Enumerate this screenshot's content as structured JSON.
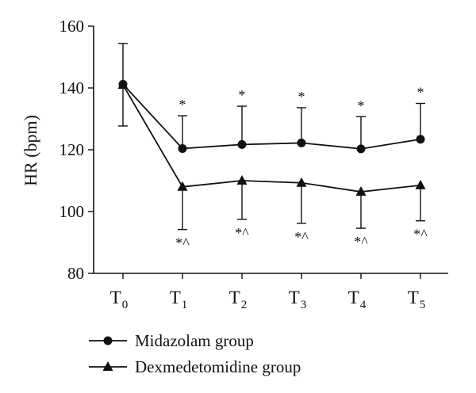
{
  "chart_data": {
    "type": "line",
    "ylabel": "HR (bpm)",
    "xlabel": "",
    "ylim": [
      80,
      160
    ],
    "yticks": [
      80,
      100,
      120,
      140,
      160
    ],
    "categories": [
      {
        "main": "T",
        "sub": "0"
      },
      {
        "main": "T",
        "sub": "1"
      },
      {
        "main": "T",
        "sub": "2"
      },
      {
        "main": "T",
        "sub": "3"
      },
      {
        "main": "T",
        "sub": "4"
      },
      {
        "main": "T",
        "sub": "5"
      }
    ],
    "series": [
      {
        "name": "Midazolam group",
        "marker": "circle",
        "error_direction": "up",
        "values": [
          141.2,
          120.4,
          121.7,
          122.2,
          120.3,
          123.4
        ],
        "errors": [
          13.2,
          10.6,
          12.4,
          11.4,
          10.4,
          11.6
        ],
        "annotations": [
          "",
          "*",
          "*",
          "*",
          "*",
          "*"
        ]
      },
      {
        "name": "Dexmedetomidine group",
        "marker": "triangle",
        "error_direction": "down",
        "values": [
          141.0,
          108.0,
          110.0,
          109.3,
          106.4,
          108.5
        ],
        "errors": [
          13.3,
          13.8,
          12.5,
          13.1,
          11.8,
          11.5
        ],
        "annotations": [
          "",
          "*^",
          "*^",
          "*^",
          "*^",
          "*^"
        ]
      }
    ],
    "grid": false,
    "legend_position": "bottom-left",
    "colors": {
      "line": "#111111"
    }
  }
}
